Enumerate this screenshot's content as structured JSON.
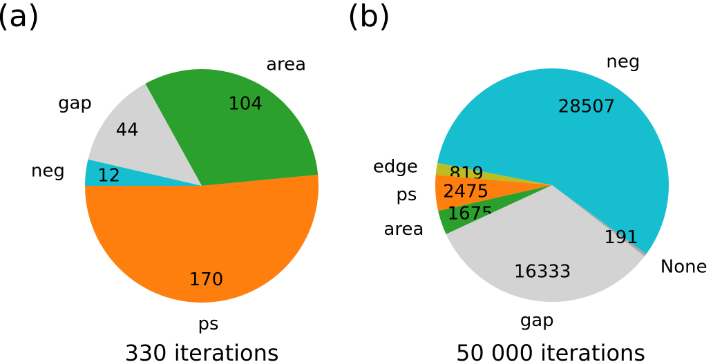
{
  "chart_data": [
    {
      "type": "pie",
      "panel_label": "(a)",
      "caption": "330 iterations",
      "slices": [
        {
          "label": "ps",
          "value": 170,
          "value_label": "170",
          "color": "#ff7f0e"
        },
        {
          "label": "area",
          "value": 104,
          "value_label": "104",
          "color": "#2ca02c"
        },
        {
          "label": "gap",
          "value": 44,
          "value_label": "44",
          "color": "#d3d3d3"
        },
        {
          "label": "neg",
          "value": 12,
          "value_label": "12",
          "color": "#17becf"
        }
      ]
    },
    {
      "type": "pie",
      "panel_label": "(b)",
      "caption": "50 000 iterations",
      "slices": [
        {
          "label": "neg",
          "value": 28507,
          "value_label": "28507",
          "color": "#17becf"
        },
        {
          "label": "edge",
          "value": 819,
          "value_label": "819",
          "color": "#bcbd22"
        },
        {
          "label": "ps",
          "value": 2475,
          "value_label": "2475",
          "color": "#ff7f0e"
        },
        {
          "label": "area",
          "value": 1675,
          "value_label": "1675",
          "color": "#2ca02c"
        },
        {
          "label": "gap",
          "value": 16333,
          "value_label": "16333",
          "color": "#d3d3d3"
        },
        {
          "label": "None",
          "value": 191,
          "value_label": "191",
          "color": "#a9a9a9"
        }
      ]
    }
  ]
}
